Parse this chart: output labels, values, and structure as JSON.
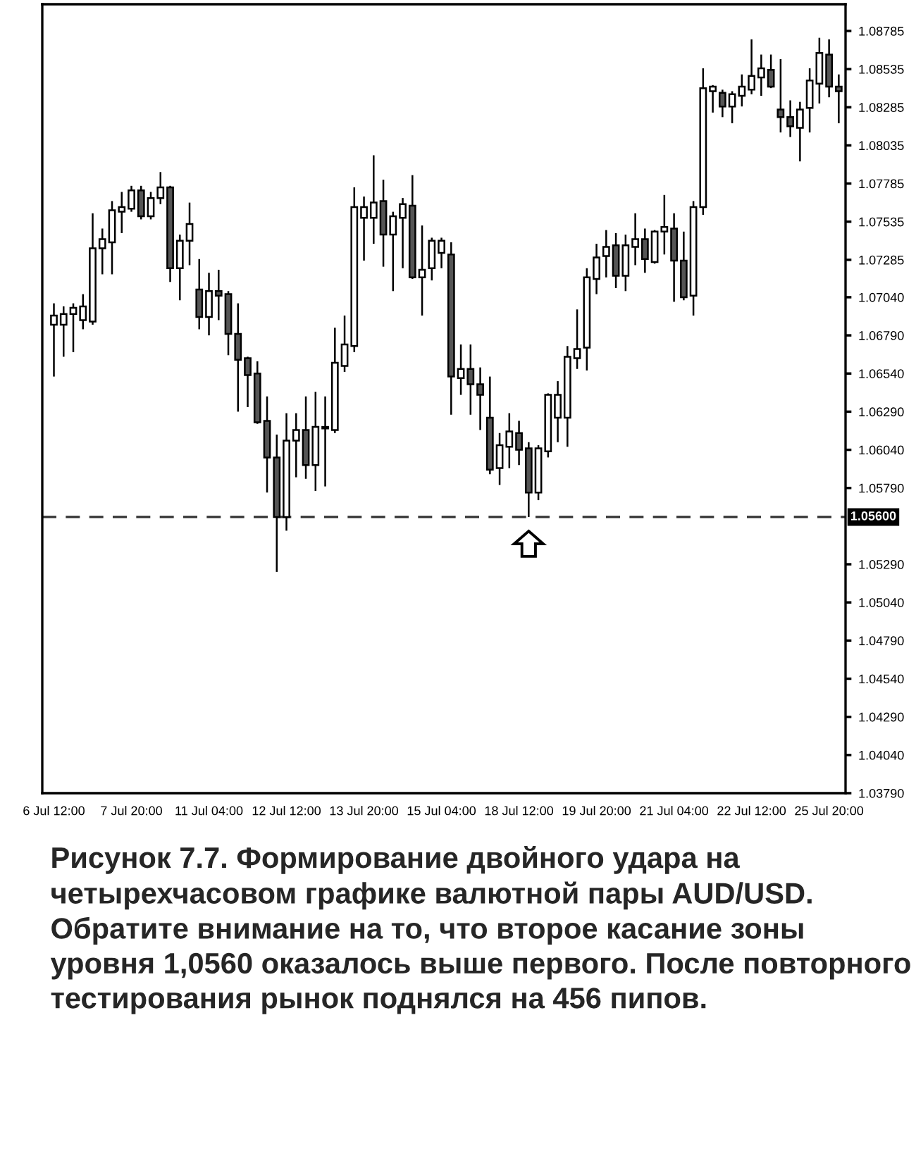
{
  "chart_data": {
    "type": "candlestick",
    "categories": [
      "6 Jul 12:00",
      null,
      null,
      null,
      null,
      null,
      null,
      null,
      "7 Jul 20:00",
      null,
      null,
      null,
      null,
      null,
      null,
      null,
      "11 Jul 04:00",
      null,
      null,
      null,
      null,
      null,
      null,
      null,
      "12 Jul 12:00",
      null,
      null,
      null,
      null,
      null,
      null,
      null,
      "13 Jul 20:00",
      null,
      null,
      null,
      null,
      null,
      null,
      null,
      "15 Jul 04:00",
      null,
      null,
      null,
      null,
      null,
      null,
      null,
      "18 Jul 12:00",
      null,
      null,
      null,
      null,
      null,
      null,
      null,
      "19 Jul 20:00",
      null,
      null,
      null,
      null,
      null,
      null,
      null,
      "21 Jul 04:00",
      null,
      null,
      null,
      null,
      null,
      null,
      null,
      "22 Jul 12:00",
      null,
      null,
      null,
      null,
      null,
      null,
      null,
      "25 Jul 20:00",
      null
    ],
    "ohlc": [
      [
        1.0686,
        1.07,
        1.0652,
        1.0692
      ],
      [
        1.0686,
        1.0698,
        1.0665,
        1.0693
      ],
      [
        1.0693,
        1.07,
        1.0668,
        1.0697
      ],
      [
        1.0689,
        1.0706,
        1.0683,
        1.0698
      ],
      [
        1.0688,
        1.0759,
        1.0686,
        1.0736
      ],
      [
        1.0736,
        1.0749,
        1.0719,
        1.0742
      ],
      [
        1.074,
        1.0767,
        1.0719,
        1.0761
      ],
      [
        1.076,
        1.0773,
        1.0746,
        1.0763
      ],
      [
        1.0762,
        1.0777,
        1.076,
        1.0774
      ],
      [
        1.0774,
        1.0777,
        1.0755,
        1.0757
      ],
      [
        1.0757,
        1.0773,
        1.0755,
        1.0769
      ],
      [
        1.0769,
        1.0786,
        1.0765,
        1.0776
      ],
      [
        1.0776,
        1.0777,
        1.0714,
        1.0723
      ],
      [
        1.0723,
        1.0745,
        1.0702,
        1.0741
      ],
      [
        1.0741,
        1.0766,
        1.0725,
        1.0752
      ],
      [
        1.0709,
        1.0729,
        1.0683,
        1.0691
      ],
      [
        1.0691,
        1.072,
        1.0679,
        1.0708
      ],
      [
        1.0708,
        1.0722,
        1.0689,
        1.0705
      ],
      [
        1.0706,
        1.0708,
        1.0666,
        1.068
      ],
      [
        1.068,
        1.07,
        1.0629,
        1.0663
      ],
      [
        1.0664,
        1.0665,
        1.0632,
        1.0653
      ],
      [
        1.0654,
        1.0662,
        1.0621,
        1.0622
      ],
      [
        1.0623,
        1.0639,
        1.0576,
        1.0599
      ],
      [
        1.0599,
        1.0614,
        1.0524,
        1.056
      ],
      [
        1.056,
        1.0628,
        1.0551,
        1.061
      ],
      [
        1.061,
        1.0628,
        1.0586,
        1.0617
      ],
      [
        1.0617,
        1.0639,
        1.0585,
        1.0594
      ],
      [
        1.0594,
        1.0642,
        1.0577,
        1.0619
      ],
      [
        1.0618,
        1.0639,
        1.058,
        1.0619
      ],
      [
        1.0617,
        1.0684,
        1.0615,
        1.0661
      ],
      [
        1.0659,
        1.0692,
        1.0655,
        1.0673
      ],
      [
        1.0672,
        1.0776,
        1.0668,
        1.0763
      ],
      [
        1.0756,
        1.077,
        1.0728,
        1.0763
      ],
      [
        1.0756,
        1.0797,
        1.0739,
        1.0766
      ],
      [
        1.0767,
        1.0781,
        1.0724,
        1.0745
      ],
      [
        1.0745,
        1.076,
        1.0708,
        1.0757
      ],
      [
        1.0756,
        1.0769,
        1.0723,
        1.0765
      ],
      [
        1.0764,
        1.0784,
        1.0716,
        1.0717
      ],
      [
        1.0717,
        1.0751,
        1.0692,
        1.0722
      ],
      [
        1.0723,
        1.0743,
        1.0715,
        1.0741
      ],
      [
        1.0733,
        1.0743,
        1.0723,
        1.0741
      ],
      [
        1.0732,
        1.074,
        1.0627,
        1.0652
      ],
      [
        1.0651,
        1.0673,
        1.064,
        1.0657
      ],
      [
        1.0657,
        1.0673,
        1.0627,
        1.0647
      ],
      [
        1.0647,
        1.0658,
        1.0617,
        1.064
      ],
      [
        1.0625,
        1.0652,
        1.0588,
        1.0591
      ],
      [
        1.0592,
        1.0615,
        1.0581,
        1.0607
      ],
      [
        1.0606,
        1.0628,
        1.0592,
        1.0616
      ],
      [
        1.0615,
        1.0623,
        1.0594,
        1.0604
      ],
      [
        1.0605,
        1.0609,
        1.056,
        1.0576
      ],
      [
        1.0576,
        1.0607,
        1.0571,
        1.0605
      ],
      [
        1.0603,
        1.0641,
        1.0599,
        1.064
      ],
      [
        1.0625,
        1.0649,
        1.0609,
        1.064
      ],
      [
        1.0625,
        1.0672,
        1.0606,
        1.0665
      ],
      [
        1.0664,
        1.0696,
        1.0657,
        1.067
      ],
      [
        1.0671,
        1.0723,
        1.0656,
        1.0717
      ],
      [
        1.0716,
        1.0739,
        1.0706,
        1.073
      ],
      [
        1.0731,
        1.0748,
        1.0717,
        1.0737
      ],
      [
        1.0738,
        1.0746,
        1.071,
        1.0718
      ],
      [
        1.0718,
        1.0745,
        1.0708,
        1.0738
      ],
      [
        1.0737,
        1.0759,
        1.0725,
        1.0742
      ],
      [
        1.0742,
        1.0749,
        1.072,
        1.0729
      ],
      [
        1.0727,
        1.0748,
        1.0726,
        1.0747
      ],
      [
        1.0747,
        1.0771,
        1.0732,
        1.075
      ],
      [
        1.0749,
        1.0759,
        1.0701,
        1.0728
      ],
      [
        1.0728,
        1.0747,
        1.0702,
        1.0704
      ],
      [
        1.0705,
        1.0767,
        1.0692,
        1.0763
      ],
      [
        1.0763,
        1.0854,
        1.0758,
        1.0841
      ],
      [
        1.0839,
        1.0843,
        1.0825,
        1.0842
      ],
      [
        1.0838,
        1.084,
        1.0822,
        1.0829
      ],
      [
        1.0829,
        1.0839,
        1.0818,
        1.0837
      ],
      [
        1.0836,
        1.085,
        1.0829,
        1.0842
      ],
      [
        1.084,
        1.0873,
        1.0837,
        1.0849
      ],
      [
        1.0848,
        1.0863,
        1.0836,
        1.0854
      ],
      [
        1.0853,
        1.0863,
        1.0841,
        1.0842
      ],
      [
        1.0827,
        1.086,
        1.0812,
        1.0822
      ],
      [
        1.0822,
        1.0833,
        1.0809,
        1.0816
      ],
      [
        1.0815,
        1.0832,
        1.0793,
        1.0827
      ],
      [
        1.0828,
        1.0854,
        1.0812,
        1.0846
      ],
      [
        1.0844,
        1.0874,
        1.0831,
        1.0864
      ],
      [
        1.0863,
        1.0873,
        1.0835,
        1.0842
      ],
      [
        1.0842,
        1.085,
        1.0818,
        1.0839
      ]
    ],
    "ylim": [
      1.0379,
      1.0896
    ],
    "yticks": [
      {
        "value": 1.0379,
        "label": "1.03790"
      },
      {
        "value": 1.0404,
        "label": "1.04040"
      },
      {
        "value": 1.0429,
        "label": "1.04290"
      },
      {
        "value": 1.0454,
        "label": "1.04540"
      },
      {
        "value": 1.0479,
        "label": "1.04790"
      },
      {
        "value": 1.0504,
        "label": "1.05040"
      },
      {
        "value": 1.0529,
        "label": "1.05290"
      },
      {
        "value": 1.0579,
        "label": "1.05790"
      },
      {
        "value": 1.0604,
        "label": "1.06040"
      },
      {
        "value": 1.0629,
        "label": "1.06290"
      },
      {
        "value": 1.0654,
        "label": "1.06540"
      },
      {
        "value": 1.0679,
        "label": "1.06790"
      },
      {
        "value": 1.0704,
        "label": "1.07040"
      },
      {
        "value": 1.07285,
        "label": "1.07285"
      },
      {
        "value": 1.07535,
        "label": "1.07535"
      },
      {
        "value": 1.07785,
        "label": "1.07785"
      },
      {
        "value": 1.08035,
        "label": "1.08035"
      },
      {
        "value": 1.08285,
        "label": "1.08285"
      },
      {
        "value": 1.08535,
        "label": "1.08535"
      },
      {
        "value": 1.08785,
        "label": "1.08785"
      }
    ],
    "ref_lines": [
      {
        "axis": "y",
        "value": 1.056,
        "label": "1.05600",
        "line_style": "dashed",
        "color": "#333333"
      }
    ],
    "grid": false,
    "legend": false,
    "annotations": [
      "Рисунок 7.7. Формирование двойного удара на четырехчасовом графике валютной пары AUD/USD. Обратите внимание на то, что второе касание зоны уровня 1,0560 оказалось выше первого. После повторного тестирования рынок поднялся на 456 пипов."
    ]
  }
}
